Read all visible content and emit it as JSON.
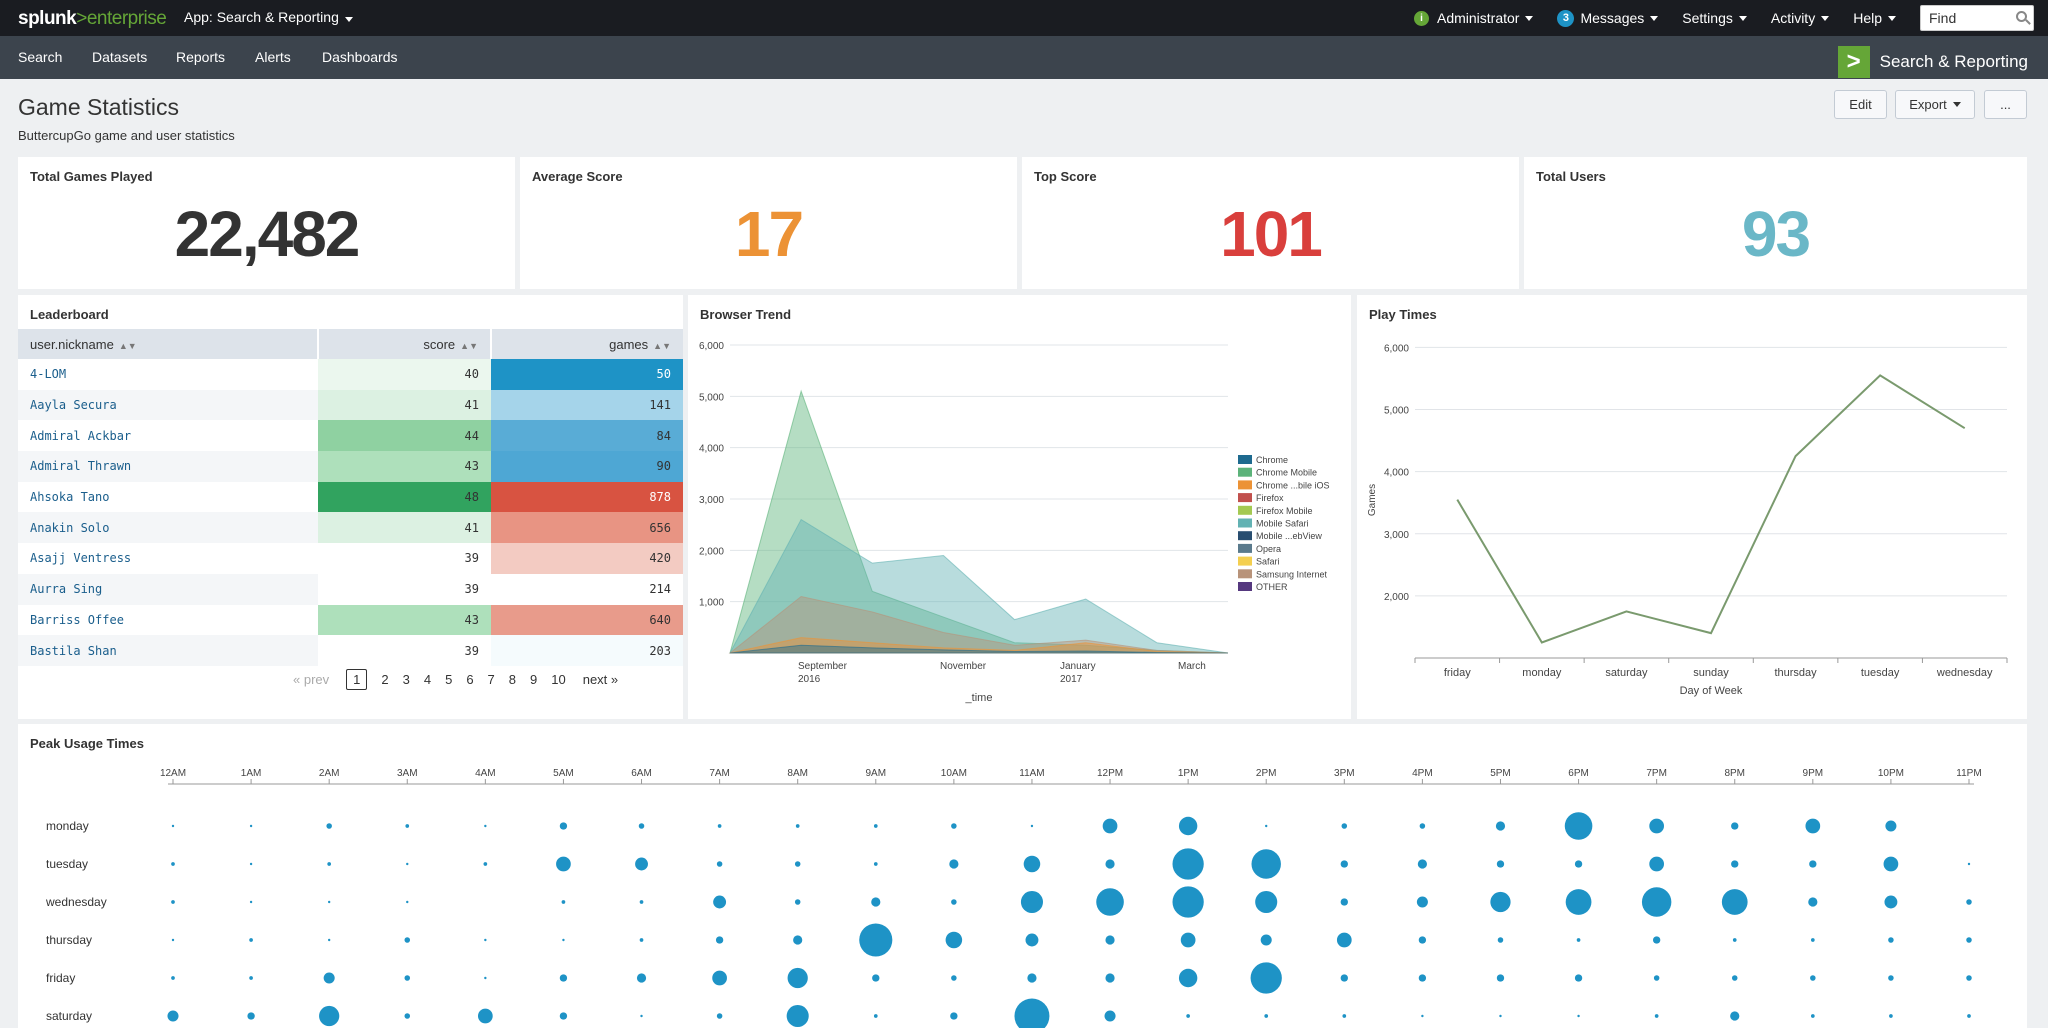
{
  "topbar": {
    "logo_main": "splunk",
    "logo_sep": ">",
    "logo_sub": "enterprise",
    "app_menu": "App: Search & Reporting",
    "admin_badge": "i",
    "admin": "Administrator",
    "messages_count": "3",
    "messages": "Messages",
    "settings": "Settings",
    "activity": "Activity",
    "help": "Help",
    "find_placeholder": "Find"
  },
  "nav": {
    "items": [
      "Search",
      "Datasets",
      "Reports",
      "Alerts",
      "Dashboards"
    ],
    "app_title": "Search & Reporting",
    "app_logo": ">"
  },
  "dashboard": {
    "title": "Game Statistics",
    "description": "ButtercupGo game and user statistics",
    "edit": "Edit",
    "export": "Export",
    "more": "..."
  },
  "kpis": [
    {
      "title": "Total Games Played",
      "value": "22,482",
      "color": "#333333"
    },
    {
      "title": "Average Score",
      "value": "17",
      "color": "#ec9235"
    },
    {
      "title": "Top Score",
      "value": "101",
      "color": "#d93f3c"
    },
    {
      "title": "Total Users",
      "value": "93",
      "color": "#6ab7c7"
    }
  ],
  "leaderboard": {
    "title": "Leaderboard",
    "columns": [
      "user.nickname",
      "score",
      "games"
    ],
    "rows": [
      {
        "name": "4-LOM",
        "score": "40",
        "games": "50",
        "score_bg": "#ebf7ee",
        "games_bg": "#1e93c6",
        "games_fg": "#ffffff"
      },
      {
        "name": "Aayla Secura",
        "score": "41",
        "games": "141",
        "score_bg": "#dcf1e2",
        "games_bg": "#a5d4ea",
        "games_fg": "#333333"
      },
      {
        "name": "Admiral Ackbar",
        "score": "44",
        "games": "84",
        "score_bg": "#8fd1a1",
        "games_bg": "#59acd6",
        "games_fg": "#333333"
      },
      {
        "name": "Admiral Thrawn",
        "score": "43",
        "games": "90",
        "score_bg": "#aee0bb",
        "games_bg": "#4ea7d4",
        "games_fg": "#333333"
      },
      {
        "name": "Ahsoka Tano",
        "score": "48",
        "games": "878",
        "score_bg": "#31a35f",
        "games_bg": "#d85341",
        "games_fg": "#ffffff"
      },
      {
        "name": "Anakin Solo",
        "score": "41",
        "games": "656",
        "score_bg": "#dcf1e2",
        "games_bg": "#e89483",
        "games_fg": "#333333"
      },
      {
        "name": "Asajj Ventress",
        "score": "39",
        "games": "420",
        "score_bg": "#ffffff",
        "games_bg": "#f3cbc2",
        "games_fg": "#333333"
      },
      {
        "name": "Aurra Sing",
        "score": "39",
        "games": "214",
        "score_bg": "#ffffff",
        "games_bg": "#ffffff",
        "games_fg": "#333333"
      },
      {
        "name": "Barriss Offee",
        "score": "43",
        "games": "640",
        "score_bg": "#aee0bb",
        "games_bg": "#e89b8b",
        "games_fg": "#333333"
      },
      {
        "name": "Bastila Shan",
        "score": "39",
        "games": "203",
        "score_bg": "#ffffff",
        "games_bg": "#f5fbfd",
        "games_fg": "#333333"
      }
    ],
    "pager": {
      "prev": "« prev",
      "pages": [
        "1",
        "2",
        "3",
        "4",
        "5",
        "6",
        "7",
        "8",
        "9",
        "10"
      ],
      "next": "next »"
    }
  },
  "browser_trend": {
    "title": "Browser Trend",
    "y_ticks": [
      "6,000",
      "5,000",
      "4,000",
      "3,000",
      "2,000",
      "1,000"
    ],
    "x_ticks": [
      {
        "line1": "September",
        "line2": "2016"
      },
      {
        "line1": "November",
        "line2": ""
      },
      {
        "line1": "January",
        "line2": "2017"
      },
      {
        "line1": "March",
        "line2": ""
      }
    ],
    "xlabel": "_time",
    "legend": [
      {
        "name": "Chrome",
        "color": "#1e6a8f"
      },
      {
        "name": "Chrome Mobile",
        "color": "#5cb37a"
      },
      {
        "name": "Chrome ...bile iOS",
        "color": "#ec9235"
      },
      {
        "name": "Firefox",
        "color": "#c1504d"
      },
      {
        "name": "Firefox Mobile",
        "color": "#a4c952"
      },
      {
        "name": "Mobile Safari",
        "color": "#62b2b3"
      },
      {
        "name": "Mobile ...ebView",
        "color": "#294e70"
      },
      {
        "name": "Opera",
        "color": "#5a7a8c"
      },
      {
        "name": "Safari",
        "color": "#f4cf4f"
      },
      {
        "name": "Samsung Internet",
        "color": "#b8937a"
      },
      {
        "name": "OTHER",
        "color": "#55387f"
      }
    ]
  },
  "chart_data": [
    {
      "type": "area",
      "title": "Browser Trend",
      "xlabel": "_time",
      "ylabel": "",
      "ylim": [
        0,
        6000
      ],
      "x": [
        "2016-08-01",
        "2016-09-01",
        "2016-10-01",
        "2016-11-01",
        "2016-12-01",
        "2017-01-01",
        "2017-02-01",
        "2017-03-01"
      ],
      "series": [
        {
          "name": "Chrome Mobile",
          "values": [
            0,
            5100,
            1200,
            700,
            200,
            150,
            50,
            0
          ]
        },
        {
          "name": "Mobile Safari",
          "values": [
            0,
            2600,
            1750,
            1900,
            650,
            1050,
            200,
            0
          ]
        },
        {
          "name": "Samsung Internet",
          "values": [
            0,
            1100,
            800,
            400,
            150,
            250,
            50,
            0
          ]
        },
        {
          "name": "Chrome ...bile iOS",
          "values": [
            0,
            300,
            200,
            100,
            50,
            200,
            30,
            0
          ]
        },
        {
          "name": "Chrome",
          "values": [
            0,
            150,
            100,
            60,
            30,
            40,
            10,
            0
          ]
        }
      ],
      "legend": "right"
    },
    {
      "type": "line",
      "title": "Play Times",
      "xlabel": "Day of Week",
      "ylabel": "Games",
      "categories": [
        "friday",
        "monday",
        "saturday",
        "sunday",
        "thursday",
        "tuesday",
        "wednesday"
      ],
      "values": [
        3550,
        1250,
        1750,
        1400,
        4250,
        5550,
        4700
      ],
      "ylim": [
        1000,
        6200
      ],
      "y_ticks": [
        "6,000",
        "5,000",
        "4,000",
        "3,000",
        "2,000"
      ]
    },
    {
      "type": "scatter",
      "title": "Peak Usage Times",
      "hours": [
        "12AM",
        "1AM",
        "2AM",
        "3AM",
        "4AM",
        "5AM",
        "6AM",
        "7AM",
        "8AM",
        "9AM",
        "10AM",
        "11AM",
        "12PM",
        "1PM",
        "2PM",
        "3PM",
        "4PM",
        "5PM",
        "6PM",
        "7PM",
        "8PM",
        "9PM",
        "10PM",
        "11PM"
      ],
      "days": [
        "monday",
        "tuesday",
        "wednesday",
        "thursday",
        "friday",
        "saturday"
      ],
      "sizes": [
        [
          1,
          1,
          3,
          2,
          1,
          4,
          3,
          2,
          2,
          2,
          3,
          1,
          8,
          10,
          1,
          3,
          3,
          5,
          15,
          8,
          4,
          8,
          6,
          0
        ],
        [
          2,
          1,
          2,
          1,
          2,
          8,
          7,
          3,
          3,
          2,
          5,
          9,
          5,
          17,
          16,
          4,
          5,
          4,
          4,
          8,
          4,
          4,
          8,
          1
        ],
        [
          2,
          1,
          1,
          1,
          0,
          2,
          2,
          7,
          3,
          5,
          3,
          12,
          15,
          17,
          12,
          4,
          6,
          11,
          14,
          16,
          14,
          5,
          7,
          3
        ],
        [
          1,
          2,
          1,
          3,
          1,
          1,
          2,
          4,
          5,
          18,
          9,
          7,
          5,
          8,
          6,
          8,
          4,
          3,
          2,
          4,
          2,
          2,
          3,
          3
        ],
        [
          2,
          2,
          6,
          3,
          1,
          4,
          5,
          8,
          11,
          4,
          3,
          5,
          5,
          10,
          17,
          4,
          4,
          4,
          4,
          3,
          3,
          3,
          3,
          3
        ],
        [
          6,
          4,
          11,
          3,
          8,
          4,
          1,
          3,
          12,
          2,
          4,
          19,
          6,
          2,
          2,
          2,
          1,
          1,
          1,
          2,
          5,
          2,
          2,
          2
        ]
      ]
    }
  ],
  "play_times": {
    "title": "Play Times",
    "xlabel": "Day of Week",
    "ylabel": "Games"
  },
  "peak": {
    "title": "Peak Usage Times"
  },
  "colors": {
    "accent_green": "#65a637",
    "bubble_blue": "#1e93c6",
    "line_green": "#7a9a6e"
  }
}
